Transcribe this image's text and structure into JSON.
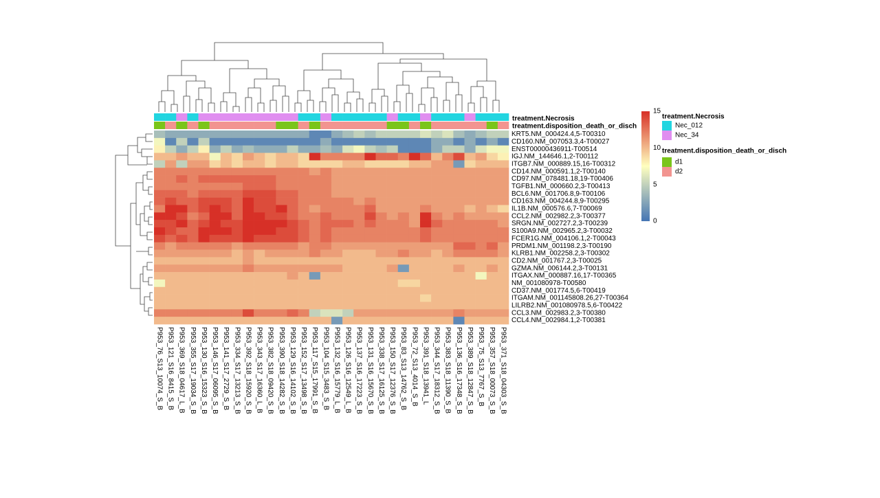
{
  "chart_data": {
    "type": "heatmap",
    "title": "",
    "columns": [
      "P953_76_S13_10074_S_B",
      "P953_121_S16_8415_S_B",
      "P953_369_S18_04617_L_B",
      "P953_355_S17_19034_S_B",
      "P953_130_S16_15323_S_B",
      "P953_146_S17_06095_S_B",
      "P953_141_S17_2729_S_B",
      "P953_334_S17_13213_S_B",
      "P953_392_S18_15920_S_B",
      "P953_343_S17_16360_L_B",
      "P953_382_S18_09420_S_B",
      "P953_390_S18_14282_S_B",
      "P953_129_S16_14102_S_B",
      "P953_152_S17_13498_S_B",
      "P953_117_S15_17991_S_B",
      "P953_104_S15_3483_S_B",
      "P953_132_S16_15779_L_B",
      "P953_126_S16_12549_L_B",
      "P953_137_S16_17223_S_B",
      "P953_131_S16_15670_S_B",
      "P953_338_S17_16125_S_B",
      "P953_150_S17_12376_S_B",
      "P953_83_S13_14762_S_B",
      "P953_72_S13_4014_S_B",
      "P953_391_S18_13941_L",
      "P953_344_S17_18312_S_B",
      "P953_383_S18_11390_S_B",
      "P953_136_S16_17348_S_B",
      "P953_389_S18_12847_S_B",
      "P953_75_S13_7767_S_B",
      "P953_357_S18_00073_S_B",
      "P953_371_S18_04303_S_B"
    ],
    "rows": [
      "KRT5.NM_000424.4,5-T00310",
      "CD160.NM_007053.3,4-T00027",
      "ENST00000436911-T00514",
      "IGJ.NM_144646.1,2-T00112",
      "ITGB7.NM_000889.15,16-T00312",
      "CD14.NM_000591.1,2-T00140",
      "CD97.NM_078481.18,19-T00406",
      "TGFB1.NM_000660.2,3-T00413",
      "BCL6.NM_001706.8,9-T00106",
      "CD163.NM_004244.8,9-T00295",
      "IL1B.NM_000576.6,7-T00069",
      "CCL2.NM_002982.2,3-T00377",
      "SRGN.NM_002727.2,3-T00239",
      "S100A9.NM_002965.2,3-T00032",
      "FCER1G.NM_004106.1,2-T00043",
      "PRDM1.NM_001198.2,3-T00190",
      "KLRB1.NM_002258.2,3-T00302",
      "CD2.NM_001767.2,3-T00025",
      "GZMA.NM_006144.2,3-T00131",
      "ITGAX.NM_000887.16,17-T00365",
      "NM_001080978-T00580",
      "CD37.NM_001774.5,6-T00419",
      "ITGAM.NM_001145808.26,27-T00364",
      "LILRB2.NM_001080978.5,6-T00422",
      "CCL3.NM_002983.2,3-T00380",
      "CCL4.NM_002984.1,2-T00381"
    ],
    "values": [
      [
        4,
        3,
        3,
        3,
        3,
        3,
        3,
        3,
        3,
        3,
        3,
        3,
        3,
        3,
        1,
        1,
        3,
        4,
        5,
        4,
        5,
        5,
        5,
        5,
        6,
        5,
        6,
        4,
        3,
        4,
        5,
        5
      ],
      [
        7,
        1,
        5,
        1,
        5,
        1,
        1,
        1,
        1,
        1,
        1,
        1,
        1,
        1,
        1,
        3,
        1,
        1,
        1,
        1,
        1,
        1,
        1,
        1,
        1,
        3,
        3,
        1,
        3,
        1,
        3,
        1
      ],
      [
        8,
        5,
        3,
        5,
        8,
        3,
        5,
        3,
        4,
        3,
        3,
        3,
        5,
        3,
        3,
        4,
        3,
        6,
        7,
        5,
        4,
        5,
        1,
        1,
        1,
        3,
        5,
        5,
        3,
        6,
        7,
        7
      ],
      [
        10,
        10,
        11,
        10,
        10,
        7,
        10,
        9,
        11,
        10,
        9,
        10,
        10,
        9,
        16,
        12,
        12,
        12,
        12,
        15,
        13,
        13,
        12,
        16,
        13,
        10,
        12,
        14,
        10,
        11,
        9,
        8
      ],
      [
        5,
        11,
        5,
        11,
        11,
        9,
        10,
        9,
        10,
        10,
        9,
        10,
        10,
        9,
        9,
        9,
        9,
        10,
        10,
        9,
        9,
        9,
        9,
        10,
        10,
        11,
        11,
        2,
        9,
        10,
        10,
        10
      ],
      [
        12,
        12,
        12,
        12,
        12,
        12,
        12,
        12,
        12,
        12,
        12,
        12,
        12,
        12,
        11,
        12,
        11,
        11,
        11,
        11,
        11,
        11,
        11,
        11,
        11,
        11,
        11,
        11,
        11,
        11,
        11,
        11
      ],
      [
        12,
        12,
        13,
        12,
        13,
        13,
        13,
        13,
        13,
        13,
        13,
        12,
        12,
        12,
        12,
        12,
        11,
        11,
        11,
        11,
        11,
        11,
        11,
        11,
        11,
        11,
        11,
        11,
        11,
        11,
        11,
        11
      ],
      [
        12,
        12,
        12,
        12,
        12,
        12,
        12,
        12,
        13,
        13,
        13,
        12,
        12,
        12,
        12,
        12,
        11,
        11,
        11,
        11,
        11,
        11,
        11,
        11,
        11,
        11,
        11,
        11,
        11,
        11,
        11,
        11
      ],
      [
        13,
        13,
        13,
        12,
        13,
        13,
        13,
        13,
        14,
        14,
        14,
        13,
        13,
        12,
        12,
        12,
        11,
        11,
        11,
        11,
        11,
        11,
        11,
        11,
        11,
        11,
        11,
        11,
        11,
        11,
        11,
        11
      ],
      [
        13,
        14,
        13,
        13,
        14,
        14,
        14,
        13,
        15,
        14,
        14,
        13,
        13,
        12,
        12,
        12,
        12,
        12,
        11,
        12,
        11,
        11,
        11,
        11,
        11,
        11,
        11,
        11,
        11,
        11,
        11,
        11
      ],
      [
        12,
        15,
        15,
        13,
        14,
        16,
        14,
        13,
        15,
        14,
        14,
        15,
        13,
        12,
        11,
        12,
        12,
        12,
        12,
        13,
        11,
        11,
        11,
        11,
        12,
        11,
        11,
        11,
        10,
        11,
        10,
        9
      ],
      [
        15,
        15,
        14,
        12,
        13,
        15,
        15,
        13,
        16,
        15,
        14,
        14,
        13,
        12,
        12,
        13,
        12,
        12,
        12,
        14,
        12,
        11,
        12,
        11,
        15,
        12,
        11,
        12,
        11,
        11,
        11,
        11
      ],
      [
        14,
        14,
        15,
        13,
        14,
        15,
        14,
        14,
        16,
        15,
        15,
        15,
        14,
        13,
        12,
        13,
        13,
        13,
        12,
        13,
        12,
        12,
        12,
        11,
        15,
        13,
        12,
        12,
        12,
        12,
        12,
        11
      ],
      [
        15,
        14,
        13,
        13,
        15,
        15,
        15,
        14,
        16,
        15,
        15,
        14,
        14,
        13,
        12,
        13,
        12,
        12,
        12,
        12,
        12,
        12,
        12,
        12,
        13,
        12,
        12,
        12,
        12,
        12,
        12,
        12
      ],
      [
        14,
        13,
        14,
        13,
        15,
        14,
        14,
        14,
        15,
        14,
        14,
        14,
        14,
        13,
        12,
        13,
        12,
        12,
        12,
        12,
        12,
        12,
        12,
        12,
        13,
        12,
        12,
        12,
        12,
        12,
        12,
        12
      ],
      [
        12,
        11,
        12,
        12,
        12,
        12,
        12,
        11,
        12,
        12,
        12,
        12,
        12,
        11,
        12,
        12,
        11,
        11,
        11,
        11,
        11,
        11,
        11,
        11,
        11,
        11,
        11,
        13,
        13,
        12,
        13,
        11
      ],
      [
        11,
        11,
        11,
        11,
        11,
        11,
        11,
        10,
        11,
        10,
        11,
        11,
        11,
        11,
        12,
        11,
        11,
        10,
        10,
        10,
        11,
        11,
        12,
        11,
        11,
        10,
        11,
        12,
        12,
        12,
        12,
        11
      ],
      [
        10,
        10,
        10,
        10,
        10,
        10,
        10,
        10,
        11,
        10,
        10,
        10,
        10,
        10,
        10,
        10,
        10,
        10,
        10,
        10,
        10,
        10,
        10,
        10,
        10,
        10,
        10,
        10,
        10,
        10,
        10,
        10
      ],
      [
        11,
        11,
        11,
        11,
        11,
        11,
        11,
        11,
        12,
        11,
        11,
        11,
        11,
        11,
        11,
        11,
        11,
        10,
        10,
        10,
        10,
        11,
        2,
        10,
        10,
        10,
        10,
        11,
        10,
        10,
        11,
        10
      ],
      [
        10,
        10,
        10,
        10,
        10,
        10,
        10,
        10,
        10,
        10,
        10,
        10,
        11,
        10,
        2,
        10,
        10,
        10,
        10,
        10,
        10,
        10,
        10,
        10,
        10,
        10,
        10,
        10,
        10,
        7,
        10,
        10
      ],
      [
        7,
        10,
        10,
        10,
        10,
        10,
        10,
        10,
        10,
        10,
        10,
        10,
        10,
        10,
        10,
        10,
        10,
        10,
        10,
        10,
        10,
        10,
        9,
        9,
        10,
        10,
        10,
        10,
        10,
        10,
        10,
        10
      ],
      [
        10,
        10,
        10,
        10,
        10,
        10,
        10,
        10,
        10,
        10,
        10,
        10,
        10,
        10,
        10,
        10,
        10,
        10,
        10,
        10,
        10,
        10,
        10,
        10,
        10,
        10,
        10,
        10,
        10,
        10,
        10,
        10
      ],
      [
        10,
        10,
        10,
        10,
        10,
        10,
        10,
        10,
        10,
        10,
        10,
        10,
        10,
        10,
        10,
        10,
        10,
        10,
        10,
        10,
        10,
        10,
        10,
        10,
        9,
        10,
        10,
        10,
        10,
        10,
        10,
        10
      ],
      [
        10,
        10,
        10,
        10,
        10,
        10,
        10,
        10,
        10,
        10,
        10,
        10,
        10,
        10,
        10,
        10,
        10,
        10,
        10,
        10,
        10,
        10,
        10,
        10,
        10,
        10,
        10,
        10,
        10,
        10,
        10,
        10
      ],
      [
        12,
        12,
        12,
        12,
        12,
        12,
        12,
        12,
        14,
        12,
        12,
        12,
        13,
        12,
        5,
        6,
        6,
        5,
        11,
        11,
        11,
        11,
        11,
        11,
        11,
        11,
        11,
        12,
        11,
        11,
        11,
        11
      ],
      [
        10,
        10,
        10,
        10,
        10,
        10,
        10,
        10,
        10,
        10,
        10,
        10,
        10,
        10,
        10,
        10,
        2,
        10,
        10,
        10,
        10,
        10,
        10,
        10,
        10,
        10,
        10,
        1,
        10,
        10,
        10,
        10
      ]
    ],
    "color_scale": {
      "min": 0,
      "max": 15,
      "ticks": [
        0,
        5,
        10,
        15
      ],
      "colors": [
        "#4575b4",
        "#ffffbf",
        "#d73027"
      ]
    },
    "annotations": [
      {
        "name": "treatment.Necrosis",
        "levels": [
          "Nec_012",
          "Nec_34"
        ],
        "colors": [
          "#22d5e0",
          "#e08ef0"
        ],
        "values": [
          "Nec_012",
          "Nec_012",
          "Nec_34",
          "Nec_012",
          "Nec_34",
          "Nec_34",
          "Nec_34",
          "Nec_34",
          "Nec_34",
          "Nec_34",
          "Nec_34",
          "Nec_34",
          "Nec_34",
          "Nec_012",
          "Nec_012",
          "Nec_34",
          "Nec_012",
          "Nec_012",
          "Nec_012",
          "Nec_012",
          "Nec_012",
          "Nec_34",
          "Nec_012",
          "Nec_012",
          "Nec_34",
          "Nec_012",
          "Nec_012",
          "Nec_012",
          "Nec_34",
          "Nec_012",
          "Nec_012",
          "Nec_012"
        ]
      },
      {
        "name": "treatment.disposition_death_or_disch",
        "levels": [
          "d1",
          "d2"
        ],
        "colors": [
          "#7ac51a",
          "#f29490"
        ],
        "values": [
          "d1",
          "d2",
          "d1",
          "d2",
          "d1",
          "d2",
          "d2",
          "d2",
          "d2",
          "d2",
          "d2",
          "d1",
          "d1",
          "d2",
          "d1",
          "d2",
          "d2",
          "d2",
          "d2",
          "d2",
          "d2",
          "d1",
          "d1",
          "d2",
          "d1",
          "d2",
          "d2",
          "d2",
          "d2",
          "d2",
          "d1",
          "d2"
        ]
      }
    ],
    "legend_placement": "right"
  }
}
